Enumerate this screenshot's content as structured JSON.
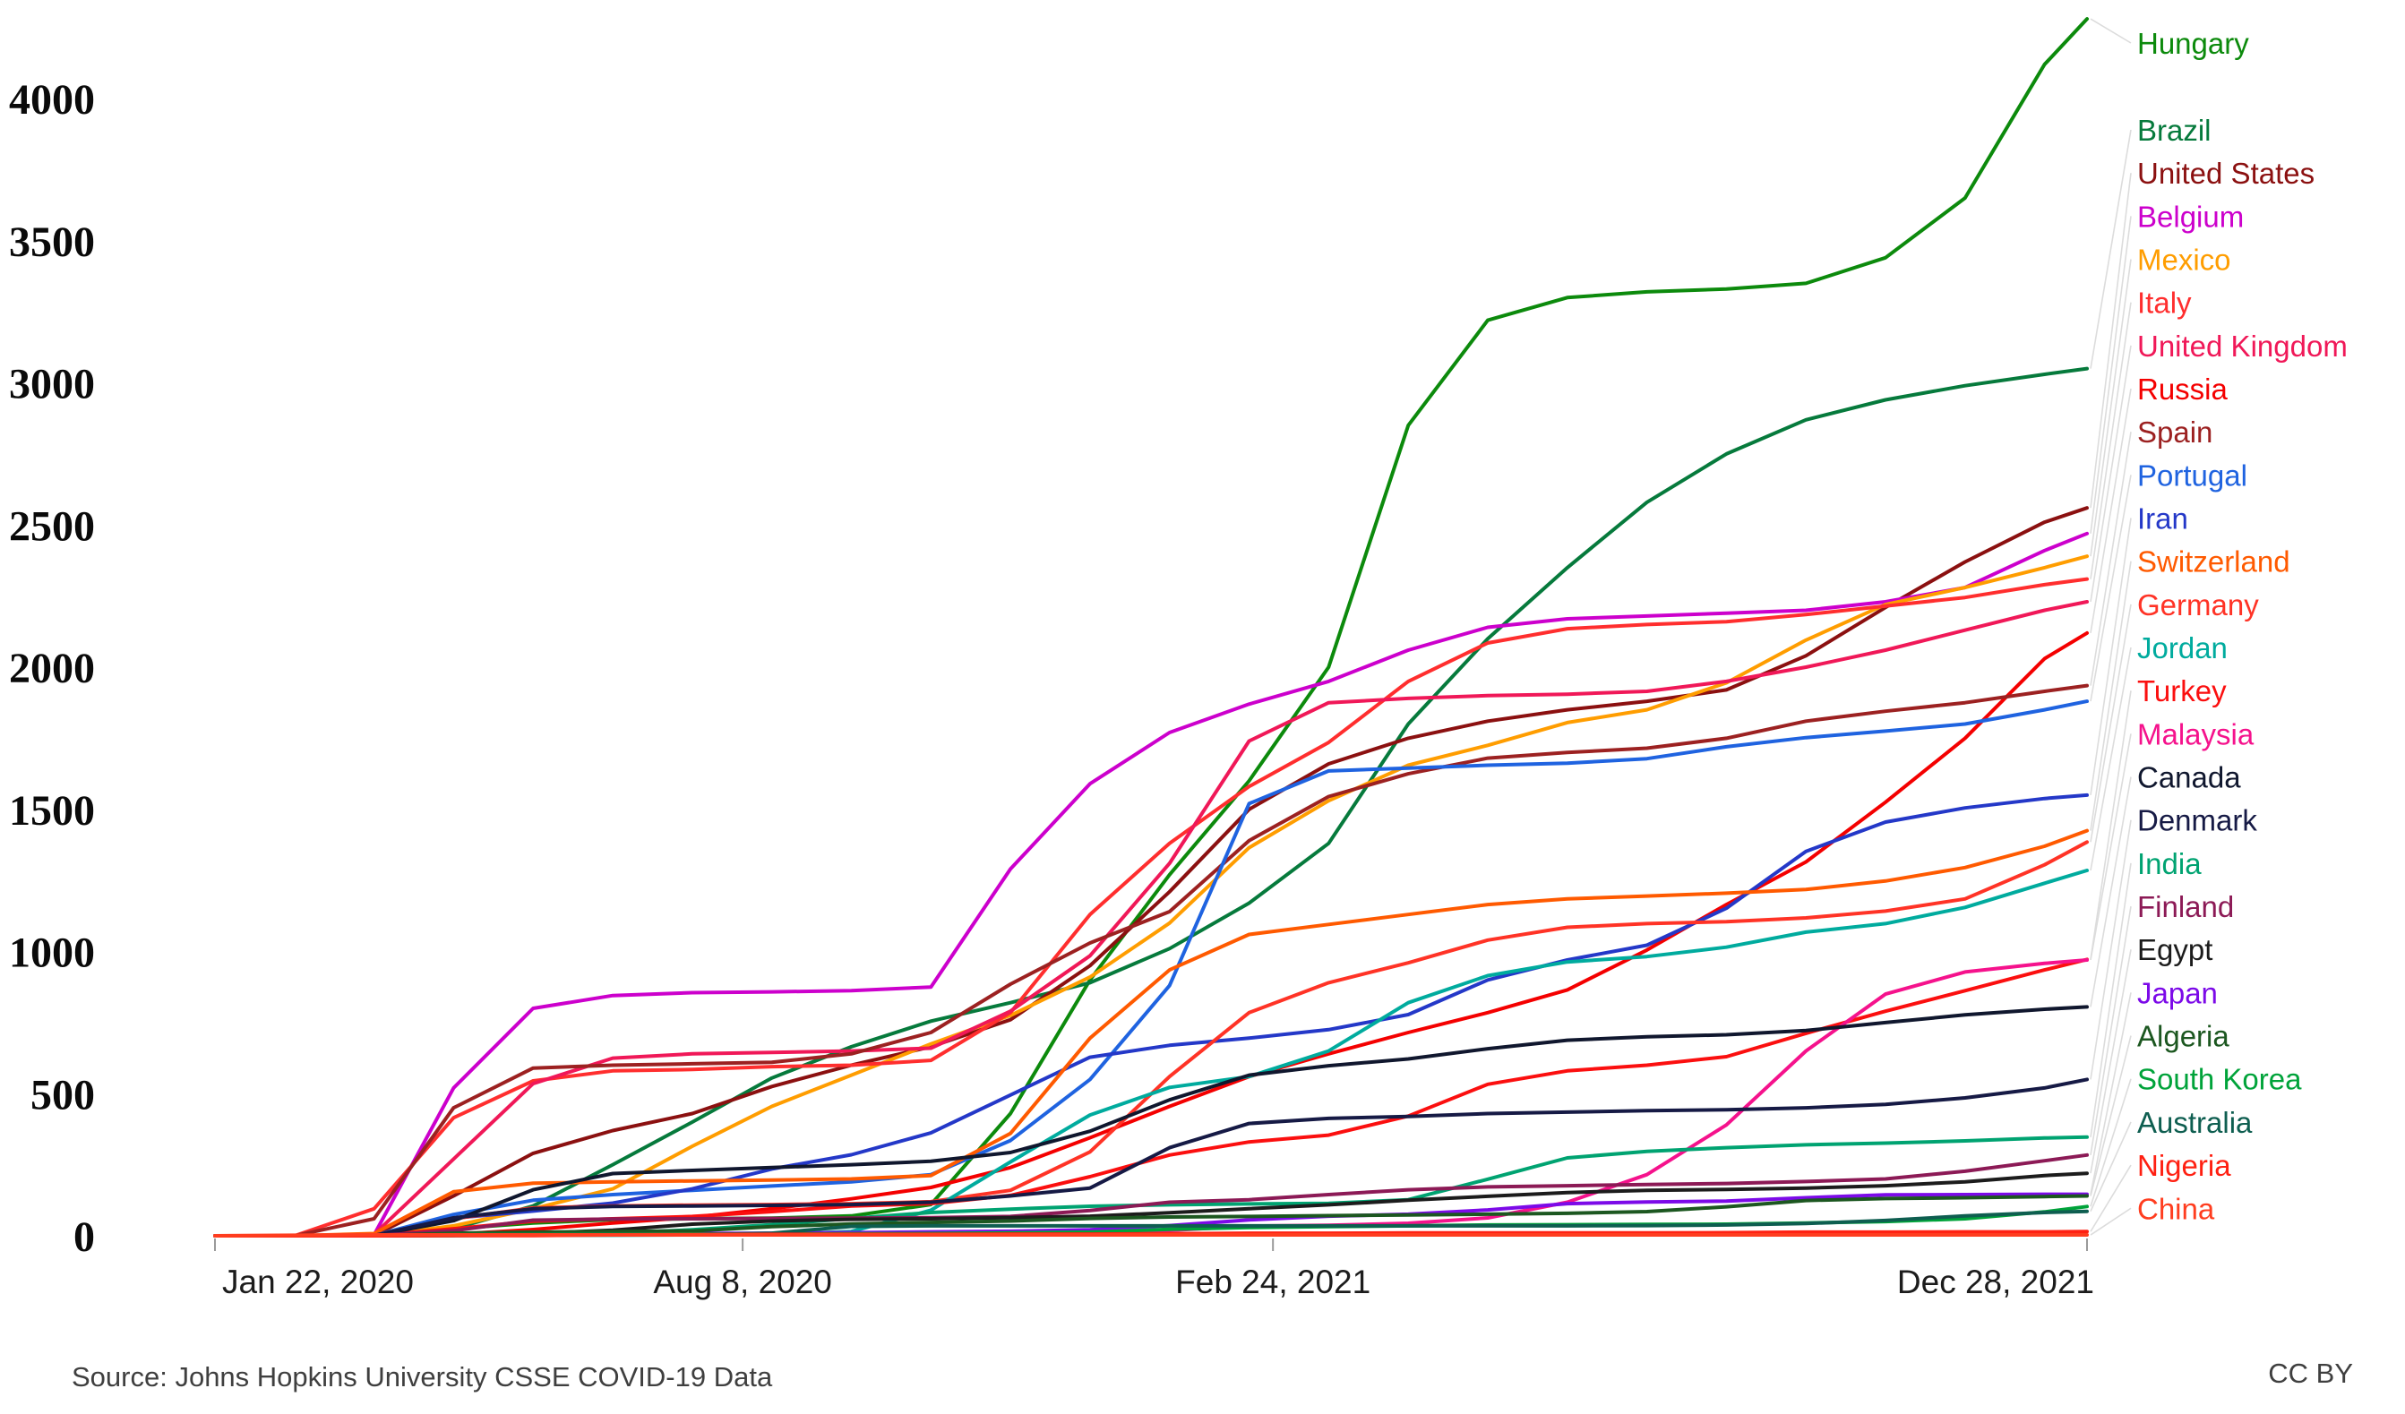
{
  "figure": {
    "source_text": "Source: Johns Hopkins University CSSE COVID-19 Data",
    "license_text": "CC BY"
  },
  "axes": {
    "y_ticks": [
      {
        "label": "4000",
        "value": 4000
      },
      {
        "label": "3500",
        "value": 3500
      },
      {
        "label": "3000",
        "value": 3000
      },
      {
        "label": "2500",
        "value": 2500
      },
      {
        "label": "2000",
        "value": 2000
      },
      {
        "label": "1500",
        "value": 1500
      },
      {
        "label": "1000",
        "value": 1000
      },
      {
        "label": "500",
        "value": 500
      },
      {
        "label": "0",
        "value": 0
      }
    ],
    "x_ticks": [
      {
        "label": "Jan 22, 2020",
        "day": 0,
        "align": "start"
      },
      {
        "label": "Aug 8, 2020",
        "day": 199,
        "align": "middle"
      },
      {
        "label": "Feb 24, 2021",
        "day": 399,
        "align": "middle"
      },
      {
        "label": "Dec 28, 2021",
        "day": 706,
        "align": "end"
      }
    ]
  },
  "chart_data": {
    "type": "line",
    "x_unit": "days since Jan 22, 2020",
    "x_range": [
      0,
      706
    ],
    "y_range": [
      0,
      4345
    ],
    "grid": false,
    "legend_position": "right",
    "sample_days": [
      0,
      30,
      60,
      90,
      120,
      150,
      180,
      210,
      240,
      270,
      300,
      330,
      360,
      390,
      420,
      450,
      480,
      510,
      540,
      570,
      600,
      630,
      660,
      690,
      706
    ],
    "series": [
      {
        "name": "Hungary",
        "color": "#0c8a0c",
        "values": [
          0,
          0,
          1,
          25,
          45,
          57,
          60,
          62,
          70,
          110,
          430,
          900,
          1270,
          1600,
          2000,
          2850,
          3220,
          3300,
          3320,
          3330,
          3350,
          3440,
          3650,
          4120,
          4280
        ]
      },
      {
        "name": "Brazil",
        "color": "#067a3c",
        "values": [
          0,
          0,
          1,
          25,
          105,
          250,
          400,
          555,
          665,
          755,
          820,
          890,
          1010,
          1170,
          1380,
          1800,
          2100,
          2350,
          2580,
          2750,
          2870,
          2940,
          2990,
          3030,
          3050
        ]
      },
      {
        "name": "United States",
        "color": "#8b1010",
        "values": [
          0,
          0,
          2,
          140,
          290,
          370,
          430,
          525,
          600,
          665,
          760,
          950,
          1210,
          1500,
          1660,
          1750,
          1810,
          1850,
          1880,
          1920,
          2040,
          2210,
          2370,
          2510,
          2560
        ]
      },
      {
        "name": "Belgium",
        "color": "#cc00cc",
        "values": [
          0,
          0,
          3,
          520,
          800,
          845,
          855,
          858,
          862,
          875,
          1290,
          1590,
          1770,
          1870,
          1950,
          2060,
          2140,
          2170,
          2180,
          2190,
          2200,
          2230,
          2280,
          2410,
          2470
        ]
      },
      {
        "name": "Mexico",
        "color": "#ff9d00",
        "values": [
          0,
          0,
          0,
          35,
          95,
          165,
          315,
          455,
          565,
          675,
          775,
          910,
          1100,
          1365,
          1530,
          1655,
          1725,
          1805,
          1850,
          1945,
          2095,
          2220,
          2280,
          2350,
          2390
        ]
      },
      {
        "name": "Italy",
        "color": "#ff2e2e",
        "values": [
          0,
          0,
          95,
          415,
          545,
          580,
          585,
          595,
          600,
          617,
          785,
          1130,
          1380,
          1580,
          1735,
          1950,
          2085,
          2135,
          2150,
          2160,
          2185,
          2215,
          2245,
          2290,
          2310
        ]
      },
      {
        "name": "United Kingdom",
        "color": "#f01858",
        "values": [
          0,
          0,
          5,
          270,
          535,
          625,
          640,
          645,
          650,
          660,
          790,
          985,
          1310,
          1740,
          1875,
          1890,
          1900,
          1905,
          1915,
          1950,
          2000,
          2060,
          2130,
          2200,
          2230
        ]
      },
      {
        "name": "Russia",
        "color": "#f40000",
        "values": [
          0,
          0,
          0,
          5,
          22,
          45,
          65,
          95,
          130,
          170,
          240,
          345,
          455,
          560,
          640,
          715,
          785,
          865,
          1005,
          1165,
          1315,
          1525,
          1750,
          2030,
          2120
        ]
      },
      {
        "name": "Spain",
        "color": "#9c2121",
        "values": [
          0,
          0,
          60,
          450,
          590,
          600,
          605,
          610,
          640,
          715,
          885,
          1030,
          1140,
          1390,
          1545,
          1625,
          1680,
          1700,
          1715,
          1750,
          1810,
          1845,
          1875,
          1915,
          1935
        ]
      },
      {
        "name": "Portugal",
        "color": "#1f63e0",
        "values": [
          0,
          0,
          1,
          75,
          125,
          145,
          160,
          175,
          190,
          215,
          335,
          550,
          880,
          1520,
          1635,
          1645,
          1655,
          1662,
          1678,
          1720,
          1752,
          1775,
          1800,
          1850,
          1880
        ]
      },
      {
        "name": "Iran",
        "color": "#2438c8",
        "values": [
          0,
          0,
          2,
          62,
          87,
          115,
          165,
          235,
          285,
          362,
          495,
          628,
          670,
          695,
          725,
          778,
          900,
          970,
          1022,
          1152,
          1352,
          1455,
          1505,
          1538,
          1550
        ]
      },
      {
        "name": "Switzerland",
        "color": "#ff5a00",
        "values": [
          0,
          0,
          8,
          155,
          185,
          190,
          193,
          196,
          200,
          212,
          360,
          695,
          935,
          1060,
          1095,
          1130,
          1165,
          1185,
          1195,
          1205,
          1218,
          1248,
          1295,
          1370,
          1425
        ]
      },
      {
        "name": "Germany",
        "color": "#ff3326",
        "values": [
          0,
          0,
          2,
          60,
          98,
          105,
          108,
          110,
          113,
          120,
          160,
          295,
          560,
          785,
          890,
          960,
          1040,
          1085,
          1098,
          1105,
          1118,
          1142,
          1185,
          1305,
          1385
        ]
      },
      {
        "name": "Jordan",
        "color": "#00ab9e",
        "values": [
          0,
          0,
          0,
          1,
          2,
          2,
          3,
          4,
          15,
          90,
          260,
          425,
          522,
          560,
          650,
          820,
          915,
          963,
          982,
          1015,
          1068,
          1098,
          1155,
          1240,
          1285
        ]
      },
      {
        "name": "Turkey",
        "color": "#fb0f0f",
        "values": [
          0,
          0,
          1,
          25,
          51,
          60,
          68,
          85,
          105,
          113,
          142,
          208,
          284,
          330,
          354,
          421,
          533,
          580,
          600,
          630,
          712,
          790,
          862,
          935,
          972
        ]
      },
      {
        "name": "Malaysia",
        "color": "#f5128c",
        "values": [
          0,
          0,
          0,
          2,
          3,
          4,
          4,
          4,
          4,
          5,
          6,
          9,
          19,
          34,
          37,
          44,
          63,
          118,
          215,
          390,
          650,
          850,
          928,
          958,
          970
        ]
      },
      {
        "name": "Canada",
        "color": "#10172e",
        "values": [
          0,
          0,
          1,
          53,
          162,
          219,
          230,
          240,
          250,
          262,
          293,
          368,
          478,
          565,
          598,
          622,
          658,
          688,
          700,
          707,
          722,
          750,
          777,
          797,
          805
        ]
      },
      {
        "name": "Denmark",
        "color": "#161a45",
        "values": [
          0,
          0,
          1,
          63,
          95,
          103,
          105,
          107,
          110,
          118,
          140,
          168,
          310,
          395,
          413,
          420,
          430,
          435,
          440,
          443,
          450,
          462,
          485,
          520,
          550
        ]
      },
      {
        "name": "India",
        "color": "#00a371",
        "values": [
          0,
          0,
          0,
          1,
          3,
          9,
          21,
          39,
          61,
          82,
          94,
          104,
          109,
          112,
          114,
          127,
          199,
          274,
          297,
          310,
          320,
          326,
          334,
          344,
          347
        ]
      },
      {
        "name": "Finland",
        "color": "#8c1a56",
        "values": [
          0,
          0,
          1,
          18,
          55,
          59,
          60,
          61,
          62,
          64,
          68,
          89,
          118,
          127,
          145,
          162,
          172,
          176,
          180,
          184,
          191,
          200,
          227,
          264,
          284
        ]
      },
      {
        "name": "Egypt",
        "color": "#1c1c1c",
        "values": [
          0,
          0,
          0,
          2,
          8,
          20,
          41,
          52,
          58,
          60,
          64,
          69,
          81,
          95,
          109,
          125,
          139,
          152,
          160,
          163,
          168,
          176,
          190,
          212,
          220
        ]
      },
      {
        "name": "Japan",
        "color": "#7c0ae8",
        "values": [
          0,
          0,
          1,
          3,
          6,
          7,
          8,
          9,
          11,
          14,
          16,
          21,
          36,
          56,
          69,
          76,
          91,
          113,
          119,
          122,
          134,
          144,
          145,
          146,
          146
        ]
      },
      {
        "name": "Algeria",
        "color": "#1c5720",
        "values": [
          0,
          0,
          0,
          9,
          13,
          15,
          17,
          32,
          42,
          47,
          52,
          61,
          66,
          68,
          71,
          73,
          76,
          79,
          85,
          102,
          124,
          131,
          134,
          138,
          140
        ]
      },
      {
        "name": "South Korea",
        "color": "#00a33a",
        "values": [
          0,
          0,
          2,
          4,
          5,
          5,
          6,
          6,
          7,
          8,
          10,
          13,
          23,
          29,
          32,
          35,
          38,
          39,
          40,
          41,
          45,
          50,
          60,
          84,
          103
        ]
      },
      {
        "name": "Australia",
        "color": "#0e5e50",
        "values": [
          0,
          0,
          1,
          3,
          4,
          4,
          4,
          9,
          33,
          35,
          35,
          35,
          35,
          35,
          35,
          35,
          35,
          35,
          36,
          38,
          43,
          54,
          70,
          82,
          86
        ]
      },
      {
        "name": "Nigeria",
        "color": "#ff2012",
        "values": [
          0,
          0,
          0,
          1,
          1,
          3,
          4,
          5,
          5,
          5,
          6,
          6,
          7,
          9,
          9,
          10,
          10,
          10,
          10,
          11,
          13,
          13,
          14,
          14,
          15
        ]
      },
      {
        "name": "China",
        "color": "#ff3d1f",
        "values": [
          0,
          2,
          3,
          3,
          3,
          3,
          3,
          3,
          3,
          3,
          3,
          3,
          3,
          3,
          3,
          3,
          3,
          3,
          3,
          3,
          3,
          3,
          3,
          3,
          3
        ]
      }
    ]
  }
}
